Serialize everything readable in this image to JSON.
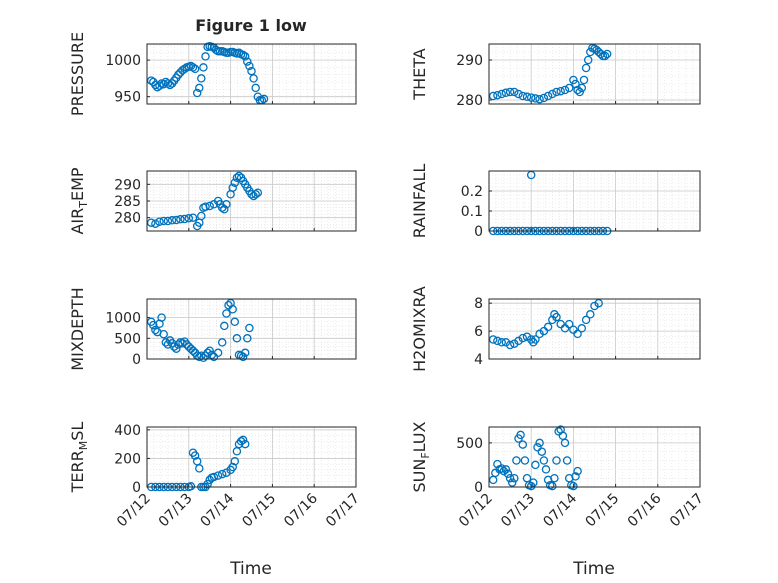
{
  "figure": {
    "title": "Figure 1 low",
    "xlabel": "Time"
  },
  "colors": {
    "marker": "#0072BD",
    "axis": "#262626",
    "grid": "#c8c8c8"
  },
  "x_ticks": [
    "07/12",
    "07/13",
    "07/14",
    "07/15",
    "07/16",
    "07/17"
  ],
  "chart_data": [
    {
      "id": "pressure",
      "type": "scatter",
      "ylabel": "PRESSURE",
      "yticks": [
        950,
        1000
      ],
      "ylim": [
        940,
        1022
      ],
      "grid": true,
      "points": [
        [
          0.1,
          972
        ],
        [
          0.15,
          970
        ],
        [
          0.2,
          966
        ],
        [
          0.25,
          963
        ],
        [
          0.3,
          965
        ],
        [
          0.35,
          968
        ],
        [
          0.4,
          967
        ],
        [
          0.45,
          970
        ],
        [
          0.5,
          968
        ],
        [
          0.55,
          966
        ],
        [
          0.6,
          968
        ],
        [
          0.65,
          972
        ],
        [
          0.7,
          976
        ],
        [
          0.75,
          980
        ],
        [
          0.8,
          983
        ],
        [
          0.85,
          986
        ],
        [
          0.9,
          988
        ],
        [
          0.95,
          990
        ],
        [
          1.0,
          991
        ],
        [
          1.05,
          992
        ],
        [
          1.1,
          990
        ],
        [
          1.15,
          988
        ],
        [
          1.2,
          955
        ],
        [
          1.25,
          962
        ],
        [
          1.3,
          975
        ],
        [
          1.35,
          990
        ],
        [
          1.4,
          1005
        ],
        [
          1.45,
          1018
        ],
        [
          1.5,
          1019
        ],
        [
          1.55,
          1018
        ],
        [
          1.6,
          1017
        ],
        [
          1.65,
          1014
        ],
        [
          1.7,
          1012
        ],
        [
          1.75,
          1012
        ],
        [
          1.8,
          1012
        ],
        [
          1.85,
          1011
        ],
        [
          1.9,
          1010
        ],
        [
          1.95,
          1010
        ],
        [
          2.0,
          1011
        ],
        [
          2.05,
          1011
        ],
        [
          2.1,
          1010
        ],
        [
          2.15,
          1009
        ],
        [
          2.2,
          1010
        ],
        [
          2.25,
          1008
        ],
        [
          2.3,
          1007
        ],
        [
          2.35,
          1005
        ],
        [
          2.4,
          998
        ],
        [
          2.45,
          992
        ],
        [
          2.5,
          985
        ],
        [
          2.55,
          975
        ],
        [
          2.6,
          962
        ],
        [
          2.65,
          950
        ],
        [
          2.7,
          945
        ],
        [
          2.75,
          945
        ],
        [
          2.8,
          947
        ]
      ]
    },
    {
      "id": "theta",
      "type": "scatter",
      "ylabel": "THETA",
      "yticks": [
        280,
        290
      ],
      "ylim": [
        279,
        294
      ],
      "grid": true,
      "points": [
        [
          0.1,
          281
        ],
        [
          0.2,
          281.2
        ],
        [
          0.3,
          281.5
        ],
        [
          0.4,
          281.8
        ],
        [
          0.5,
          282
        ],
        [
          0.6,
          282
        ],
        [
          0.7,
          281.5
        ],
        [
          0.8,
          281
        ],
        [
          0.9,
          280.8
        ],
        [
          1.0,
          280.6
        ],
        [
          1.1,
          280.4
        ],
        [
          1.2,
          280.2
        ],
        [
          1.3,
          280.5
        ],
        [
          1.4,
          281
        ],
        [
          1.5,
          281.5
        ],
        [
          1.6,
          282
        ],
        [
          1.7,
          282.2
        ],
        [
          1.8,
          282.5
        ],
        [
          1.9,
          283
        ],
        [
          2.0,
          285
        ],
        [
          2.05,
          284
        ],
        [
          2.1,
          282.5
        ],
        [
          2.15,
          282
        ],
        [
          2.2,
          283
        ],
        [
          2.25,
          285
        ],
        [
          2.3,
          288
        ],
        [
          2.35,
          290
        ],
        [
          2.4,
          292
        ],
        [
          2.45,
          293
        ],
        [
          2.5,
          292.8
        ],
        [
          2.55,
          292.5
        ],
        [
          2.6,
          292
        ],
        [
          2.65,
          291.5
        ],
        [
          2.7,
          291
        ],
        [
          2.75,
          291
        ],
        [
          2.8,
          291.5
        ]
      ]
    },
    {
      "id": "air_temp",
      "type": "scatter",
      "ylabel": "AIR_TEMP",
      "yticks": [
        280,
        285,
        290
      ],
      "ylim": [
        276,
        294
      ],
      "grid": true,
      "points": [
        [
          0.1,
          278.5
        ],
        [
          0.2,
          278.2
        ],
        [
          0.3,
          278.8
        ],
        [
          0.4,
          279
        ],
        [
          0.5,
          279
        ],
        [
          0.6,
          279.2
        ],
        [
          0.7,
          279.3
        ],
        [
          0.8,
          279.5
        ],
        [
          0.9,
          279.6
        ],
        [
          1.0,
          279.8
        ],
        [
          1.1,
          280
        ],
        [
          1.2,
          277.5
        ],
        [
          1.25,
          278.5
        ],
        [
          1.3,
          280.5
        ],
        [
          1.35,
          283
        ],
        [
          1.4,
          283.3
        ],
        [
          1.5,
          283.5
        ],
        [
          1.6,
          284
        ],
        [
          1.7,
          285
        ],
        [
          1.75,
          284
        ],
        [
          1.8,
          283
        ],
        [
          1.85,
          282.5
        ],
        [
          1.9,
          284
        ],
        [
          2.0,
          287
        ],
        [
          2.05,
          289
        ],
        [
          2.1,
          290.5
        ],
        [
          2.15,
          292
        ],
        [
          2.2,
          292.5
        ],
        [
          2.25,
          292
        ],
        [
          2.3,
          291
        ],
        [
          2.35,
          290
        ],
        [
          2.4,
          289
        ],
        [
          2.45,
          288
        ],
        [
          2.5,
          287
        ],
        [
          2.55,
          286.5
        ],
        [
          2.6,
          287
        ],
        [
          2.65,
          287.5
        ]
      ]
    },
    {
      "id": "rainfall",
      "type": "scatter",
      "ylabel": "RAINFALL",
      "yticks": [
        0,
        0.1,
        0.2
      ],
      "ylim": [
        0,
        0.3
      ],
      "grid": true,
      "points": [
        [
          0.1,
          0
        ],
        [
          0.2,
          0
        ],
        [
          0.3,
          0
        ],
        [
          0.4,
          0
        ],
        [
          0.5,
          0
        ],
        [
          0.6,
          0
        ],
        [
          0.7,
          0
        ],
        [
          0.8,
          0
        ],
        [
          0.9,
          0
        ],
        [
          1.0,
          0
        ],
        [
          1.1,
          0
        ],
        [
          1.2,
          0
        ],
        [
          1.3,
          0
        ],
        [
          1.4,
          0
        ],
        [
          1.5,
          0
        ],
        [
          1.6,
          0
        ],
        [
          1.7,
          0
        ],
        [
          1.8,
          0
        ],
        [
          1.9,
          0
        ],
        [
          2.0,
          0
        ],
        [
          2.1,
          0
        ],
        [
          2.2,
          0
        ],
        [
          2.3,
          0
        ],
        [
          2.4,
          0
        ],
        [
          2.5,
          0
        ],
        [
          2.6,
          0
        ],
        [
          2.7,
          0
        ],
        [
          2.8,
          0
        ],
        [
          1.0,
          0.28
        ]
      ]
    },
    {
      "id": "mixdepth",
      "type": "scatter",
      "ylabel": "MIXDEPTH",
      "yticks": [
        0,
        500,
        1000
      ],
      "ylim": [
        0,
        1450
      ],
      "grid": true,
      "points": [
        [
          0.1,
          900
        ],
        [
          0.15,
          820
        ],
        [
          0.2,
          700
        ],
        [
          0.25,
          650
        ],
        [
          0.3,
          850
        ],
        [
          0.35,
          1000
        ],
        [
          0.4,
          600
        ],
        [
          0.45,
          400
        ],
        [
          0.5,
          350
        ],
        [
          0.55,
          450
        ],
        [
          0.6,
          380
        ],
        [
          0.65,
          300
        ],
        [
          0.7,
          250
        ],
        [
          0.75,
          350
        ],
        [
          0.8,
          400
        ],
        [
          0.85,
          380
        ],
        [
          0.9,
          420
        ],
        [
          0.95,
          350
        ],
        [
          1.0,
          300
        ],
        [
          1.05,
          250
        ],
        [
          1.1,
          200
        ],
        [
          1.15,
          150
        ],
        [
          1.2,
          80
        ],
        [
          1.25,
          50
        ],
        [
          1.3,
          80
        ],
        [
          1.35,
          30
        ],
        [
          1.4,
          80
        ],
        [
          1.45,
          150
        ],
        [
          1.5,
          200
        ],
        [
          1.55,
          100
        ],
        [
          1.6,
          50
        ],
        [
          1.7,
          150
        ],
        [
          1.8,
          400
        ],
        [
          1.85,
          800
        ],
        [
          1.9,
          1100
        ],
        [
          1.95,
          1300
        ],
        [
          2.0,
          1350
        ],
        [
          2.05,
          1200
        ],
        [
          2.1,
          900
        ],
        [
          2.15,
          500
        ],
        [
          2.2,
          100
        ],
        [
          2.25,
          80
        ],
        [
          2.3,
          50
        ],
        [
          2.35,
          150
        ],
        [
          2.4,
          500
        ],
        [
          2.45,
          750
        ]
      ]
    },
    {
      "id": "h2omixra",
      "type": "scatter",
      "ylabel": "H2OMIXRA",
      "yticks": [
        4,
        6,
        8
      ],
      "ylim": [
        4,
        8.3
      ],
      "grid": true,
      "points": [
        [
          0.1,
          5.4
        ],
        [
          0.2,
          5.3
        ],
        [
          0.3,
          5.2
        ],
        [
          0.4,
          5.2
        ],
        [
          0.5,
          5.0
        ],
        [
          0.6,
          5.1
        ],
        [
          0.7,
          5.3
        ],
        [
          0.8,
          5.5
        ],
        [
          0.9,
          5.6
        ],
        [
          1.0,
          5.4
        ],
        [
          1.05,
          5.2
        ],
        [
          1.1,
          5.4
        ],
        [
          1.2,
          5.8
        ],
        [
          1.3,
          6.0
        ],
        [
          1.4,
          6.3
        ],
        [
          1.5,
          6.8
        ],
        [
          1.55,
          7.2
        ],
        [
          1.6,
          7.0
        ],
        [
          1.7,
          6.5
        ],
        [
          1.8,
          6.2
        ],
        [
          1.9,
          6.5
        ],
        [
          2.0,
          6.1
        ],
        [
          2.1,
          5.8
        ],
        [
          2.2,
          6.2
        ],
        [
          2.3,
          6.8
        ],
        [
          2.4,
          7.2
        ],
        [
          2.5,
          7.8
        ],
        [
          2.6,
          8.0
        ]
      ]
    },
    {
      "id": "terr_msl",
      "type": "scatter",
      "ylabel": "TERR_MSL",
      "yticks": [
        0,
        200,
        400
      ],
      "ylim": [
        0,
        420
      ],
      "grid": true,
      "points": [
        [
          0.1,
          0
        ],
        [
          0.2,
          0
        ],
        [
          0.3,
          0
        ],
        [
          0.4,
          0
        ],
        [
          0.5,
          0
        ],
        [
          0.6,
          0
        ],
        [
          0.7,
          0
        ],
        [
          0.8,
          0
        ],
        [
          0.9,
          0
        ],
        [
          1.0,
          0
        ],
        [
          1.05,
          5
        ],
        [
          1.1,
          240
        ],
        [
          1.15,
          220
        ],
        [
          1.2,
          180
        ],
        [
          1.25,
          130
        ],
        [
          1.3,
          0
        ],
        [
          1.35,
          0
        ],
        [
          1.4,
          0
        ],
        [
          1.45,
          20
        ],
        [
          1.5,
          50
        ],
        [
          1.55,
          65
        ],
        [
          1.6,
          70
        ],
        [
          1.7,
          80
        ],
        [
          1.8,
          90
        ],
        [
          1.9,
          100
        ],
        [
          2.0,
          120
        ],
        [
          2.05,
          140
        ],
        [
          2.1,
          180
        ],
        [
          2.15,
          250
        ],
        [
          2.2,
          300
        ],
        [
          2.25,
          320
        ],
        [
          2.3,
          330
        ],
        [
          2.35,
          300
        ]
      ]
    },
    {
      "id": "sun_flux",
      "type": "scatter",
      "ylabel": "SUN_FLUX",
      "yticks": [
        0,
        500
      ],
      "ylim": [
        0,
        680
      ],
      "grid": true,
      "points": [
        [
          0.1,
          80
        ],
        [
          0.15,
          160
        ],
        [
          0.2,
          260
        ],
        [
          0.25,
          200
        ],
        [
          0.3,
          210
        ],
        [
          0.35,
          180
        ],
        [
          0.4,
          200
        ],
        [
          0.45,
          150
        ],
        [
          0.5,
          100
        ],
        [
          0.55,
          50
        ],
        [
          0.6,
          100
        ],
        [
          0.65,
          300
        ],
        [
          0.7,
          550
        ],
        [
          0.75,
          590
        ],
        [
          0.8,
          480
        ],
        [
          0.85,
          300
        ],
        [
          0.9,
          100
        ],
        [
          0.95,
          20
        ],
        [
          1.0,
          10
        ],
        [
          1.05,
          50
        ],
        [
          1.1,
          250
        ],
        [
          1.15,
          450
        ],
        [
          1.2,
          500
        ],
        [
          1.25,
          400
        ],
        [
          1.3,
          300
        ],
        [
          1.35,
          200
        ],
        [
          1.4,
          80
        ],
        [
          1.45,
          20
        ],
        [
          1.5,
          10
        ],
        [
          1.55,
          100
        ],
        [
          1.6,
          300
        ],
        [
          1.65,
          630
        ],
        [
          1.7,
          650
        ],
        [
          1.75,
          580
        ],
        [
          1.8,
          500
        ],
        [
          1.85,
          300
        ],
        [
          1.9,
          100
        ],
        [
          1.95,
          20
        ],
        [
          2.0,
          10
        ],
        [
          2.05,
          120
        ],
        [
          2.1,
          180
        ]
      ]
    }
  ]
}
